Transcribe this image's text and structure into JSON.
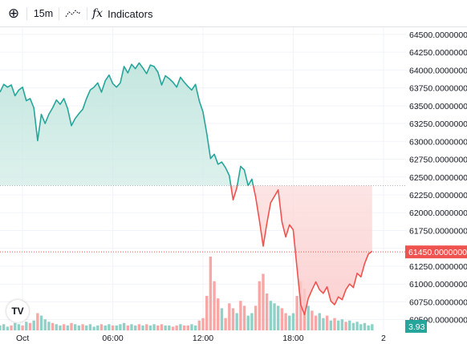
{
  "toolbar": {
    "add_symbol": "⊕",
    "interval": "15m",
    "chart_type_icon": "line-chart-icon",
    "indicators_icon": "fx",
    "indicators_label": "Indicators"
  },
  "logo": {
    "text": "TV"
  },
  "colors": {
    "up": "#26a69a",
    "down": "#ef5350",
    "area_up": "#d8efe9",
    "area_down": "#fde2e2",
    "grid": "#f0f3fa",
    "axis_text": "#131722"
  },
  "chart_data": {
    "type": "area",
    "y_axis_labels": [
      "64500.00000000",
      "64250.00000000",
      "64000.00000000",
      "63750.00000000",
      "63500.00000000",
      "63250.00000000",
      "63000.00000000",
      "62750.00000000",
      "62500.00000000",
      "62250.00000000",
      "62000.00000000",
      "61750.00000000",
      "61500.00000000",
      "61250.00000000",
      "61000.00000000",
      "60750.00000000",
      "60500.00000000"
    ],
    "y_axis_values": [
      64500,
      64250,
      64000,
      63750,
      63500,
      63250,
      63000,
      62750,
      62500,
      62250,
      62000,
      61750,
      61500,
      61250,
      61000,
      60750,
      60500
    ],
    "ylim": [
      60350,
      64600
    ],
    "x_axis_labels": [
      "Oct",
      "06:00",
      "12:00",
      "18:00",
      "2"
    ],
    "x_axis_positions": [
      2,
      26,
      50,
      74,
      98
    ],
    "xlim": [
      -4,
      104
    ],
    "baseline": 62380,
    "current_price": 61450,
    "current_price_label": "61450.00000000",
    "volume_label": "3.93",
    "price": [
      [
        -4,
        63690
      ],
      [
        -3,
        63800
      ],
      [
        -2,
        63760
      ],
      [
        -1,
        63790
      ],
      [
        0,
        63640
      ],
      [
        1,
        63720
      ],
      [
        2,
        63760
      ],
      [
        3,
        63570
      ],
      [
        4,
        63600
      ],
      [
        5,
        63470
      ],
      [
        6,
        63010
      ],
      [
        7,
        63380
      ],
      [
        8,
        63250
      ],
      [
        9,
        63380
      ],
      [
        10,
        63470
      ],
      [
        11,
        63580
      ],
      [
        12,
        63520
      ],
      [
        13,
        63600
      ],
      [
        14,
        63460
      ],
      [
        15,
        63220
      ],
      [
        16,
        63320
      ],
      [
        17,
        63390
      ],
      [
        18,
        63450
      ],
      [
        19,
        63600
      ],
      [
        20,
        63720
      ],
      [
        21,
        63760
      ],
      [
        22,
        63820
      ],
      [
        23,
        63690
      ],
      [
        24,
        63850
      ],
      [
        25,
        63930
      ],
      [
        26,
        63810
      ],
      [
        27,
        63760
      ],
      [
        28,
        63820
      ],
      [
        29,
        64050
      ],
      [
        30,
        63960
      ],
      [
        31,
        64080
      ],
      [
        32,
        64020
      ],
      [
        33,
        64100
      ],
      [
        34,
        64030
      ],
      [
        35,
        63950
      ],
      [
        36,
        64070
      ],
      [
        37,
        64050
      ],
      [
        38,
        63970
      ],
      [
        39,
        63790
      ],
      [
        40,
        63920
      ],
      [
        41,
        63880
      ],
      [
        42,
        63830
      ],
      [
        43,
        63760
      ],
      [
        44,
        63900
      ],
      [
        45,
        63830
      ],
      [
        46,
        63770
      ],
      [
        47,
        63720
      ],
      [
        48,
        63800
      ],
      [
        49,
        63570
      ],
      [
        50,
        63410
      ],
      [
        51,
        63110
      ],
      [
        52,
        62760
      ],
      [
        53,
        62820
      ],
      [
        54,
        62680
      ],
      [
        55,
        62710
      ],
      [
        56,
        62630
      ],
      [
        57,
        62520
      ],
      [
        58,
        62180
      ],
      [
        59,
        62350
      ],
      [
        60,
        62650
      ],
      [
        61,
        62600
      ],
      [
        62,
        62380
      ],
      [
        63,
        62470
      ],
      [
        64,
        62220
      ],
      [
        65,
        61890
      ],
      [
        66,
        61530
      ],
      [
        67,
        61850
      ],
      [
        68,
        62140
      ],
      [
        69,
        62230
      ],
      [
        70,
        62320
      ],
      [
        71,
        61870
      ],
      [
        72,
        61660
      ],
      [
        73,
        61830
      ],
      [
        74,
        61760
      ],
      [
        75,
        61230
      ],
      [
        76,
        60710
      ],
      [
        77,
        60570
      ],
      [
        78,
        60800
      ],
      [
        79,
        60920
      ],
      [
        80,
        61030
      ],
      [
        81,
        60920
      ],
      [
        82,
        60870
      ],
      [
        83,
        60960
      ],
      [
        84,
        60760
      ],
      [
        85,
        60710
      ],
      [
        86,
        60820
      ],
      [
        87,
        60780
      ],
      [
        88,
        60920
      ],
      [
        89,
        61000
      ],
      [
        90,
        60950
      ],
      [
        91,
        61150
      ],
      [
        92,
        61100
      ],
      [
        93,
        61290
      ],
      [
        94,
        61420
      ],
      [
        95,
        61460
      ]
    ],
    "volume": [
      [
        -4,
        4,
        "u"
      ],
      [
        -3,
        5,
        "u"
      ],
      [
        -2,
        3,
        "u"
      ],
      [
        -1,
        4,
        "d"
      ],
      [
        0,
        6,
        "u"
      ],
      [
        1,
        5,
        "u"
      ],
      [
        2,
        4,
        "d"
      ],
      [
        3,
        7,
        "u"
      ],
      [
        4,
        6,
        "d"
      ],
      [
        5,
        8,
        "u"
      ],
      [
        6,
        14,
        "d"
      ],
      [
        7,
        12,
        "u"
      ],
      [
        8,
        9,
        "u"
      ],
      [
        9,
        7,
        "u"
      ],
      [
        10,
        6,
        "d"
      ],
      [
        11,
        5,
        "u"
      ],
      [
        12,
        4,
        "u"
      ],
      [
        13,
        5,
        "d"
      ],
      [
        14,
        4,
        "u"
      ],
      [
        15,
        6,
        "d"
      ],
      [
        16,
        5,
        "u"
      ],
      [
        17,
        4,
        "u"
      ],
      [
        18,
        5,
        "d"
      ],
      [
        19,
        4,
        "u"
      ],
      [
        20,
        5,
        "u"
      ],
      [
        21,
        3,
        "u"
      ],
      [
        22,
        4,
        "u"
      ],
      [
        23,
        5,
        "d"
      ],
      [
        24,
        4,
        "u"
      ],
      [
        25,
        5,
        "u"
      ],
      [
        26,
        4,
        "d"
      ],
      [
        27,
        4,
        "u"
      ],
      [
        28,
        5,
        "u"
      ],
      [
        29,
        6,
        "u"
      ],
      [
        30,
        4,
        "d"
      ],
      [
        31,
        5,
        "u"
      ],
      [
        32,
        4,
        "u"
      ],
      [
        33,
        5,
        "d"
      ],
      [
        34,
        4,
        "u"
      ],
      [
        35,
        5,
        "d"
      ],
      [
        36,
        4,
        "u"
      ],
      [
        37,
        5,
        "u"
      ],
      [
        38,
        4,
        "d"
      ],
      [
        39,
        5,
        "d"
      ],
      [
        40,
        4,
        "u"
      ],
      [
        41,
        4,
        "u"
      ],
      [
        42,
        3,
        "d"
      ],
      [
        43,
        4,
        "d"
      ],
      [
        44,
        5,
        "u"
      ],
      [
        45,
        4,
        "d"
      ],
      [
        46,
        4,
        "d"
      ],
      [
        47,
        5,
        "u"
      ],
      [
        48,
        4,
        "u"
      ],
      [
        49,
        8,
        "d"
      ],
      [
        50,
        10,
        "d"
      ],
      [
        51,
        28,
        "d"
      ],
      [
        52,
        60,
        "d"
      ],
      [
        53,
        40,
        "d"
      ],
      [
        54,
        26,
        "d"
      ],
      [
        55,
        18,
        "u"
      ],
      [
        56,
        10,
        "d"
      ],
      [
        57,
        22,
        "d"
      ],
      [
        58,
        18,
        "d"
      ],
      [
        59,
        14,
        "u"
      ],
      [
        60,
        24,
        "d"
      ],
      [
        61,
        20,
        "d"
      ],
      [
        62,
        12,
        "u"
      ],
      [
        63,
        14,
        "u"
      ],
      [
        64,
        20,
        "d"
      ],
      [
        65,
        40,
        "d"
      ],
      [
        66,
        46,
        "d"
      ],
      [
        67,
        30,
        "d"
      ],
      [
        68,
        24,
        "u"
      ],
      [
        69,
        22,
        "u"
      ],
      [
        70,
        20,
        "u"
      ],
      [
        71,
        18,
        "d"
      ],
      [
        72,
        14,
        "d"
      ],
      [
        73,
        12,
        "u"
      ],
      [
        74,
        14,
        "u"
      ],
      [
        75,
        28,
        "d"
      ],
      [
        76,
        40,
        "d"
      ],
      [
        77,
        34,
        "d"
      ],
      [
        78,
        20,
        "u"
      ],
      [
        79,
        16,
        "d"
      ],
      [
        80,
        12,
        "d"
      ],
      [
        81,
        14,
        "u"
      ],
      [
        82,
        10,
        "u"
      ],
      [
        83,
        12,
        "d"
      ],
      [
        84,
        8,
        "u"
      ],
      [
        85,
        10,
        "d"
      ],
      [
        86,
        8,
        "u"
      ],
      [
        87,
        9,
        "u"
      ],
      [
        88,
        7,
        "d"
      ],
      [
        89,
        8,
        "u"
      ],
      [
        90,
        6,
        "u"
      ],
      [
        91,
        7,
        "u"
      ],
      [
        92,
        5,
        "u"
      ],
      [
        93,
        6,
        "u"
      ],
      [
        94,
        4,
        "u"
      ],
      [
        95,
        5,
        "u"
      ]
    ],
    "grid": true
  }
}
